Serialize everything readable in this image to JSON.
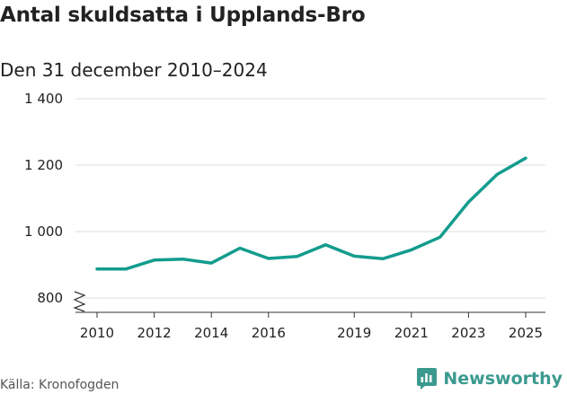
{
  "title": "Antal skuldsatta i Upplands-Bro",
  "subtitle": "Den 31 december 2010–2024",
  "source": "Källa: Kronofogden",
  "brand": "Newsworthy",
  "colors": {
    "line": "#139c8e",
    "grid": "#dddddd",
    "axis": "#333333",
    "brand": "#3b9a8f"
  },
  "chart_data": {
    "type": "line",
    "title": "Antal skuldsatta i Upplands-Bro",
    "subtitle": "Den 31 december 2010–2024",
    "x": [
      2010,
      2011,
      2012,
      2013,
      2014,
      2015,
      2016,
      2017,
      2018,
      2019,
      2020,
      2021,
      2022,
      2023,
      2024,
      2025
    ],
    "series": [
      {
        "values": [
          887,
          887,
          914,
          917,
          905,
          950,
          919,
          925,
          960,
          926,
          918,
          945,
          983,
          1089,
          1172,
          1221
        ]
      }
    ],
    "xticks": [
      "2010",
      "2012",
      "2014",
      "2016",
      "2019",
      "2021",
      "2023",
      "2025"
    ],
    "xtick_values": [
      2010,
      2012,
      2014,
      2016,
      2019,
      2021,
      2023,
      2025
    ],
    "yticks": [
      "800",
      "1 000",
      "1 200",
      "1 400"
    ],
    "ytick_values": [
      800,
      1000,
      1200,
      1400
    ],
    "ylim": [
      800,
      1400
    ],
    "xlim": [
      2010,
      2025
    ],
    "grid": "horizontal",
    "axis_break": true
  }
}
